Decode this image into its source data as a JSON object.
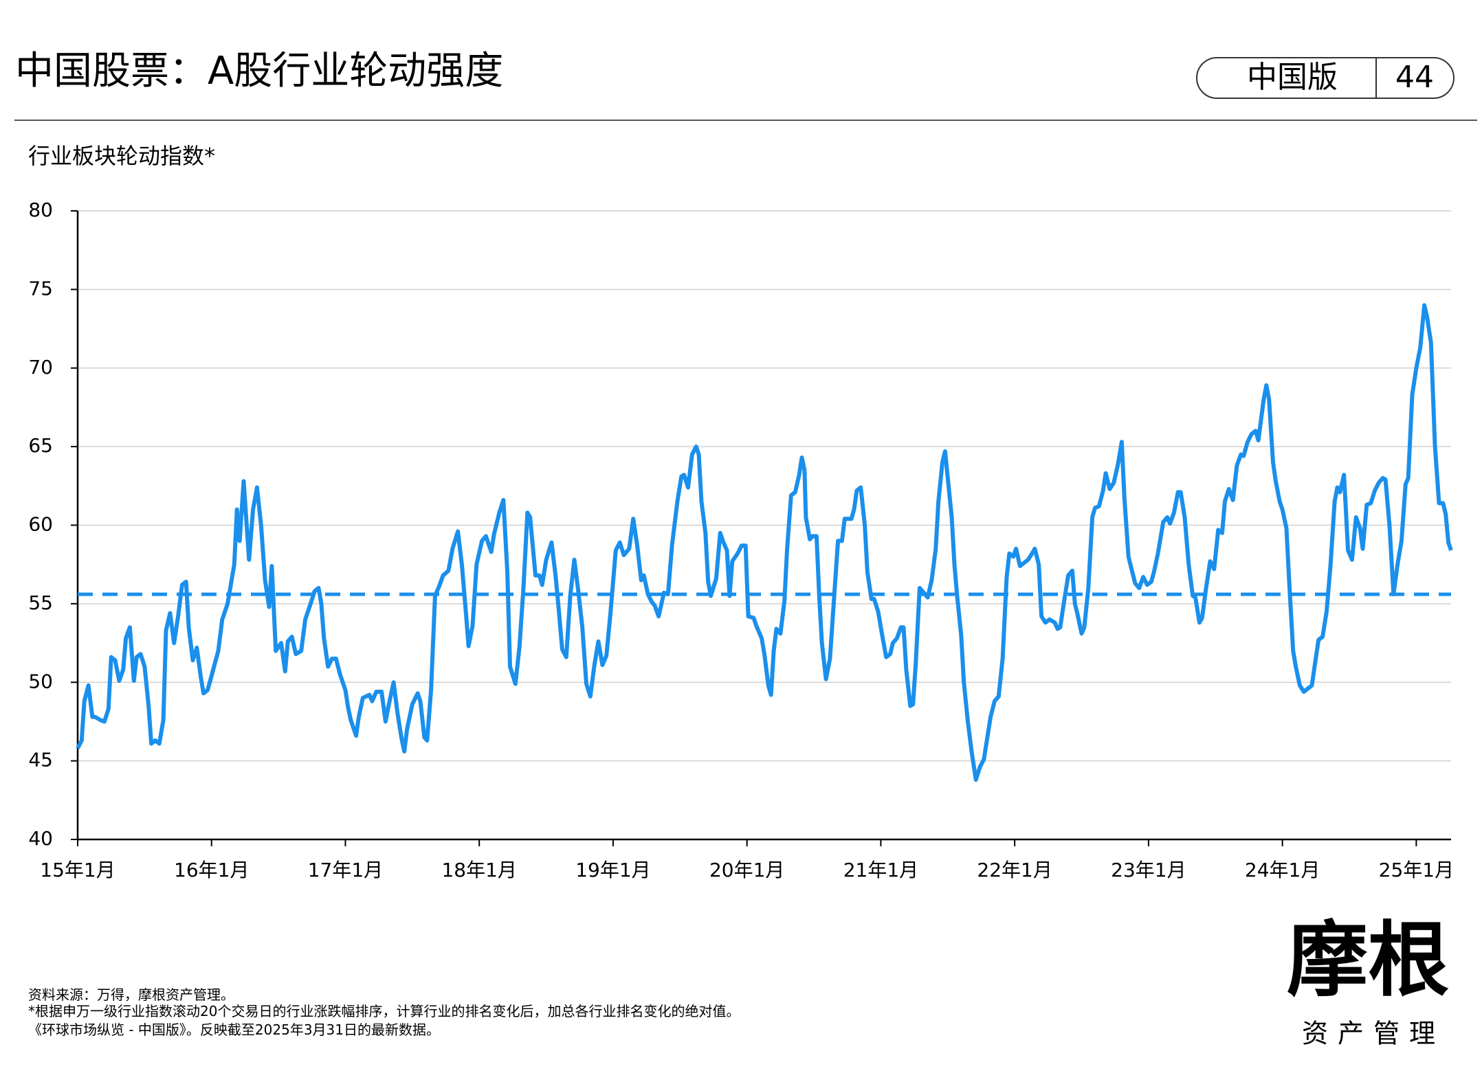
{
  "header": {
    "title": "中国股票：A股行业轮动强度",
    "edition": "中国版",
    "page": "44"
  },
  "chart_data": {
    "type": "line",
    "subtitle": "行业板块轮动指数*",
    "x": [
      2015.0,
      2015.03,
      2015.05,
      2015.08,
      2015.11,
      2015.13,
      2015.17,
      2015.2,
      2015.23,
      2015.25,
      2015.28,
      2015.31,
      2015.34,
      2015.36,
      2015.39,
      2015.42,
      2015.44,
      2015.47,
      2015.5,
      2015.53,
      2015.55,
      2015.58,
      2015.61,
      2015.64,
      2015.66,
      2015.69,
      2015.72,
      2015.75,
      2015.78,
      2015.81,
      2015.83,
      2015.86,
      2015.89,
      2015.92,
      2015.94,
      2015.97,
      2015.99,
      2016.05,
      2016.08,
      2016.12,
      2016.17,
      2016.19,
      2016.21,
      2016.24,
      2016.28,
      2016.31,
      2016.34,
      2016.37,
      2016.4,
      2016.43,
      2016.45,
      2016.48,
      2016.52,
      2016.55,
      2016.57,
      2016.6,
      2016.63,
      2016.67,
      2016.7,
      2016.74,
      2016.77,
      2016.8,
      2016.82,
      2016.84,
      2016.87,
      2016.9,
      2016.93,
      2016.96,
      2017.0,
      2017.02,
      2017.04,
      2017.08,
      2017.1,
      2017.13,
      2017.18,
      2017.2,
      2017.23,
      2017.27,
      2017.3,
      2017.32,
      2017.36,
      2017.39,
      2017.42,
      2017.44,
      2017.46,
      2017.5,
      2017.54,
      2017.56,
      2017.59,
      2017.61,
      2017.64,
      2017.67,
      2017.7,
      2017.73,
      2017.77,
      2017.8,
      2017.84,
      2017.87,
      2017.9,
      2017.92,
      2017.95,
      2017.98,
      2018.02,
      2018.05,
      2018.09,
      2018.11,
      2018.15,
      2018.18,
      2018.21,
      2018.23,
      2018.27,
      2018.3,
      2018.33,
      2018.36,
      2018.38,
      2018.42,
      2018.45,
      2018.47,
      2018.5,
      2018.54,
      2018.57,
      2018.59,
      2018.62,
      2018.65,
      2018.68,
      2018.71,
      2018.74,
      2018.77,
      2018.8,
      2018.83,
      2018.86,
      2018.89,
      2018.92,
      2018.95,
      2018.98,
      2019.02,
      2019.05,
      2019.08,
      2019.12,
      2019.15,
      2019.18,
      2019.21,
      2019.23,
      2019.26,
      2019.29,
      2019.31,
      2019.34,
      2019.38,
      2019.41,
      2019.44,
      2019.48,
      2019.51,
      2019.53,
      2019.56,
      2019.59,
      2019.62,
      2019.64,
      2019.66,
      2019.69,
      2019.71,
      2019.73,
      2019.77,
      2019.8,
      2019.82,
      2019.85,
      2019.87,
      2019.89,
      2019.93,
      2019.96,
      2019.99,
      2020.01,
      2020.05,
      2020.07,
      2020.11,
      2020.13,
      2020.16,
      2020.18,
      2020.2,
      2020.22,
      2020.25,
      2020.28,
      2020.3,
      2020.33,
      2020.36,
      2020.39,
      2020.41,
      2020.43,
      2020.44,
      2020.47,
      2020.49,
      2020.52,
      2020.54,
      2020.56,
      2020.59,
      2020.62,
      2020.65,
      2020.68,
      2020.71,
      2020.73,
      2020.76,
      2020.78,
      2020.8,
      2020.82,
      2020.85,
      2020.88,
      2020.9,
      2020.93,
      2020.95,
      2020.98,
      2021.01,
      2021.04,
      2021.07,
      2021.09,
      2021.12,
      2021.15,
      2021.17,
      2021.19,
      2021.22,
      2021.24,
      2021.26,
      2021.29,
      2021.33,
      2021.35,
      2021.38,
      2021.41,
      2021.43,
      2021.46,
      2021.48,
      2021.5,
      2021.53,
      2021.55,
      2021.57,
      2021.6,
      2021.62,
      2021.65,
      2021.68,
      2021.71,
      2021.74,
      2021.77,
      2021.79,
      2021.82,
      2021.85,
      2021.88,
      2021.91,
      2021.94,
      2021.96,
      2021.99,
      2022.01,
      2022.04,
      2022.07,
      2022.1,
      2022.13,
      2022.15,
      2022.18,
      2022.2,
      2022.23,
      2022.26,
      2022.3,
      2022.32,
      2022.34,
      2022.37,
      2022.4,
      2022.43,
      2022.45,
      2022.47,
      2022.5,
      2022.52,
      2022.55,
      2022.58,
      2022.6,
      2022.63,
      2022.66,
      2022.68,
      2022.71,
      2022.74,
      2022.77,
      2022.8,
      2022.82,
      2022.85,
      2022.87,
      2022.9,
      2022.93,
      2022.96,
      2022.99,
      2023.02,
      2023.04,
      2023.07,
      2023.11,
      2023.14,
      2023.16,
      2023.19,
      2023.22,
      2023.24,
      2023.27,
      2023.3,
      2023.33,
      2023.35,
      2023.38,
      2023.4,
      2023.43,
      2023.46,
      2023.49,
      2023.52,
      2023.55,
      2023.57,
      2023.6,
      2023.63,
      2023.66,
      2023.69,
      2023.71,
      2023.74,
      2023.77,
      2023.8,
      2023.82,
      2023.84,
      2023.86,
      2023.88,
      2023.9,
      2023.93,
      2023.95,
      2023.98,
      2024.0,
      2024.03,
      2024.05,
      2024.08,
      2024.1,
      2024.13,
      2024.16,
      2024.19,
      2024.22,
      2024.24,
      2024.27,
      2024.3,
      2024.33,
      2024.36,
      2024.39,
      2024.41,
      2024.43,
      2024.46,
      2024.49,
      2024.52,
      2024.55,
      2024.58,
      2024.6,
      2024.63,
      2024.66,
      2024.69,
      2024.72,
      2024.75,
      2024.77,
      2024.8,
      2024.83,
      2024.86,
      2024.89,
      2024.92,
      2024.94,
      2024.97,
      2025.0,
      2025.03,
      2025.06,
      2025.08,
      2025.11,
      2025.14,
      2025.17,
      2025.2,
      2025.22,
      2025.24,
      2025.26
    ],
    "series": [
      {
        "name": "行业板块轮动指数",
        "color": "#1a8fec",
        "values": [
          45.8,
          46.3,
          48.8,
          49.8,
          47.8,
          47.8,
          47.6,
          47.5,
          48.3,
          51.6,
          51.4,
          50.1,
          50.8,
          52.8,
          53.5,
          50.1,
          51.6,
          51.8,
          51,
          48.5,
          46.1,
          46.3,
          46.1,
          47.6,
          53.3,
          54.4,
          52.5,
          54.2,
          56.2,
          56.4,
          53.5,
          51.4,
          52.2,
          50.3,
          49.3,
          49.5,
          50.1,
          52,
          54,
          55,
          57.5,
          61,
          59,
          62.8,
          57.8,
          61,
          62.4,
          60,
          56.5,
          54.8,
          57.4,
          52,
          52.5,
          50.7,
          52.6,
          52.9,
          51.8,
          52,
          54,
          55,
          55.8,
          56,
          55,
          52.8,
          51,
          51.5,
          51.5,
          50.5,
          49.5,
          48.4,
          47.6,
          46.6,
          47.8,
          49,
          49.2,
          48.8,
          49.4,
          49.4,
          47.5,
          48.4,
          50,
          48,
          46.4,
          45.6,
          47,
          48.6,
          49.3,
          48.8,
          46.5,
          46.3,
          49.5,
          55.5,
          56.1,
          56.8,
          57.1,
          58.5,
          59.6,
          57.5,
          54.5,
          52.3,
          53.6,
          57.5,
          59,
          59.3,
          58.3,
          59.4,
          60.8,
          61.6,
          57,
          51,
          49.9,
          52.2,
          56,
          60.8,
          60.5,
          56.8,
          56.8,
          56.2,
          57.8,
          58.9,
          56.8,
          55,
          52.1,
          51.6,
          55.5,
          57.8,
          55.8,
          53.5,
          49.9,
          49.1,
          51.1,
          52.6,
          51.1,
          51.7,
          54.4,
          58.4,
          58.9,
          58.1,
          58.5,
          60.4,
          58.7,
          56.5,
          56.8,
          55.6,
          55.1,
          54.9,
          54.2,
          55.7,
          55.6,
          58.7,
          61.5,
          63.1,
          63.2,
          62.4,
          64.5,
          65,
          64.5,
          61.5,
          59.5,
          56.4,
          55.5,
          56.6,
          59.5,
          59,
          58.4,
          55.5,
          57.7,
          58.2,
          58.7,
          58.7,
          54.2,
          54.1,
          53.6,
          52.8,
          51.8,
          49.8,
          49.2,
          52,
          53.4,
          53.1,
          55.2,
          58.5,
          61.9,
          62.1,
          63.2,
          64.3,
          63.5,
          60.5,
          59.1,
          59.3,
          59.3,
          55.5,
          52.5,
          50.2,
          51.5,
          55.3,
          59,
          59,
          60.4,
          60.4,
          60.4,
          61,
          62.2,
          62.4,
          60,
          57,
          55.3,
          55.3,
          54.5,
          53,
          51.6,
          51.8,
          52.5,
          52.8,
          53.5,
          53.5,
          50.8,
          48.5,
          48.6,
          51.1,
          56,
          55.6,
          55.4,
          56.5,
          58.5,
          61.5,
          64,
          64.7,
          63,
          60.5,
          57.5,
          55.5,
          53,
          50,
          47.5,
          45.5,
          43.8,
          44.6,
          45.1,
          46.2,
          47.8,
          48.8,
          49.1,
          51.5,
          56.7,
          58.2,
          58,
          58.5,
          57.4,
          57.6,
          57.8,
          58.2,
          58.5,
          57.5,
          54.2,
          53.8,
          54,
          53.8,
          53.4,
          53.5,
          55.2,
          56.8,
          57.1,
          55,
          54.3,
          53.1,
          53.5,
          56,
          60.5,
          61.1,
          61.2,
          62.2,
          63.3,
          62.3,
          62.7,
          63.8,
          65.3,
          61.7,
          58,
          57.3,
          56.3,
          56,
          56.7,
          56.2,
          56.4,
          57,
          58.2,
          60.2,
          60.5,
          60.1,
          60.8,
          62.1,
          62.1,
          60.5,
          57.5,
          55.5,
          55.4,
          53.8,
          54.1,
          56,
          57.7,
          57.2,
          59.7,
          59.5,
          61.5,
          62.3,
          61.6,
          63.8,
          64.5,
          64.4,
          65.3,
          65.8,
          66,
          65.4,
          66.7,
          68,
          68.9,
          68,
          64,
          62.8,
          61.5,
          61,
          59.8,
          56.5,
          52,
          51,
          49.8,
          49.4,
          49.6,
          49.8,
          51,
          52.7,
          52.9,
          54.5,
          57.5,
          61.5,
          62.4,
          62.1,
          63.2,
          58.4,
          57.8,
          60.5,
          59.8,
          58.5,
          61.3,
          61.4,
          62.2,
          62.7,
          63,
          62.9,
          60,
          55.6,
          57.5,
          59,
          62.6,
          63,
          68.3,
          70,
          71.3,
          74,
          73.3,
          71.6,
          65,
          61.4,
          61.4,
          60.7,
          58.9,
          58.4
        ]
      }
    ],
    "mean_line": 55.6,
    "xlim": [
      2015,
      2025.26
    ],
    "xticks": [
      {
        "value": 2015,
        "label": "15年1月"
      },
      {
        "value": 2016,
        "label": "16年1月"
      },
      {
        "value": 2017,
        "label": "17年1月"
      },
      {
        "value": 2018,
        "label": "18年1月"
      },
      {
        "value": 2019,
        "label": "19年1月"
      },
      {
        "value": 2020,
        "label": "20年1月"
      },
      {
        "value": 2021,
        "label": "21年1月"
      },
      {
        "value": 2022,
        "label": "22年1月"
      },
      {
        "value": 2023,
        "label": "23年1月"
      },
      {
        "value": 2024,
        "label": "24年1月"
      },
      {
        "value": 2025,
        "label": "25年1月"
      }
    ],
    "ylim": [
      40,
      80
    ],
    "yticks": [
      40,
      45,
      50,
      55,
      60,
      65,
      70,
      75,
      80
    ],
    "grid": true
  },
  "footer": {
    "notes": [
      "资料来源：万得，摩根资产管理。",
      "*根据申万一级行业指数滚动20个交易日的行业涨跌幅排序，计算行业的排名变化后，加总各行业排名变化的绝对值。",
      "《环球市场纵览 - 中国版》。反映截至2025年3月31日的最新数据。"
    ]
  },
  "logo": {
    "name": "摩根",
    "sub": "资产管理"
  }
}
